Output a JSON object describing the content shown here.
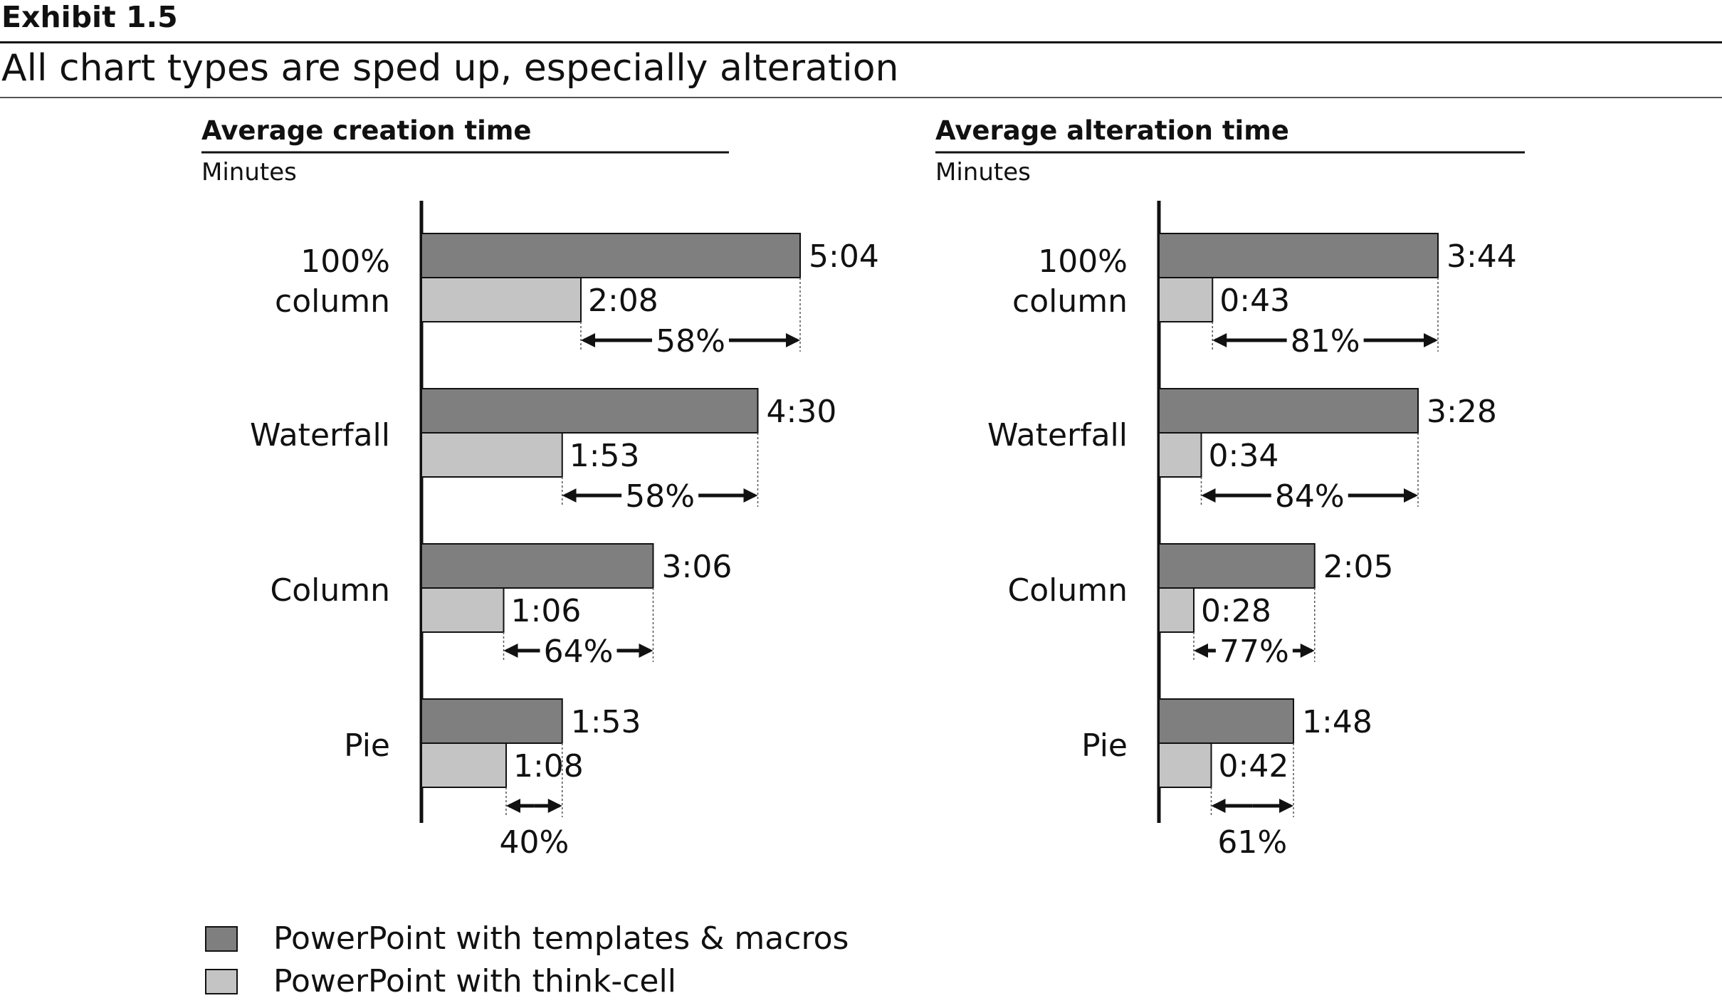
{
  "exhibit_label": "Exhibit 1.5",
  "headline": "All chart types are sped up, especially alteration",
  "colors": {
    "dark_bar": "#7f7f7f",
    "light_bar": "#c4c4c4",
    "axis": "#111111",
    "text": "#111111"
  },
  "legend": [
    {
      "label": "PowerPoint with templates & macros",
      "color": "#7f7f7f"
    },
    {
      "label": "PowerPoint with think-cell",
      "color": "#c4c4c4"
    }
  ],
  "chart_data": [
    {
      "type": "bar",
      "orientation": "horizontal",
      "title": "Average creation time",
      "unit": "Minutes",
      "categories": [
        [
          "100%",
          "column"
        ],
        [
          "Waterfall"
        ],
        [
          "Column"
        ],
        [
          "Pie"
        ]
      ],
      "series": [
        {
          "name": "PowerPoint with templates & macros",
          "values": [
            5.0667,
            4.5,
            3.1,
            1.8833
          ],
          "labels": [
            "5:04",
            "4:30",
            "3:06",
            "1:53"
          ]
        },
        {
          "name": "PowerPoint with think-cell",
          "values": [
            2.1333,
            1.8833,
            1.1,
            1.1333
          ],
          "labels": [
            "2:08",
            "1:53",
            "1:06",
            "1:08"
          ]
        }
      ],
      "difference_labels": [
        "58%",
        "58%",
        "64%",
        "40%"
      ],
      "xlim": [
        0,
        6.5
      ]
    },
    {
      "type": "bar",
      "orientation": "horizontal",
      "title": "Average alteration time",
      "unit": "Minutes",
      "categories": [
        [
          "100%",
          "column"
        ],
        [
          "Waterfall"
        ],
        [
          "Column"
        ],
        [
          "Pie"
        ]
      ],
      "series": [
        {
          "name": "PowerPoint with templates & macros",
          "values": [
            3.7333,
            3.4667,
            2.0833,
            1.8
          ],
          "labels": [
            "3:44",
            "3:28",
            "2:05",
            "1:48"
          ]
        },
        {
          "name": "PowerPoint with think-cell",
          "values": [
            0.7167,
            0.5667,
            0.4667,
            0.7
          ],
          "labels": [
            "0:43",
            "0:34",
            "0:28",
            "0:42"
          ]
        }
      ],
      "difference_labels": [
        "81%",
        "84%",
        "77%",
        "61%"
      ],
      "xlim": [
        0,
        6.5
      ]
    }
  ]
}
